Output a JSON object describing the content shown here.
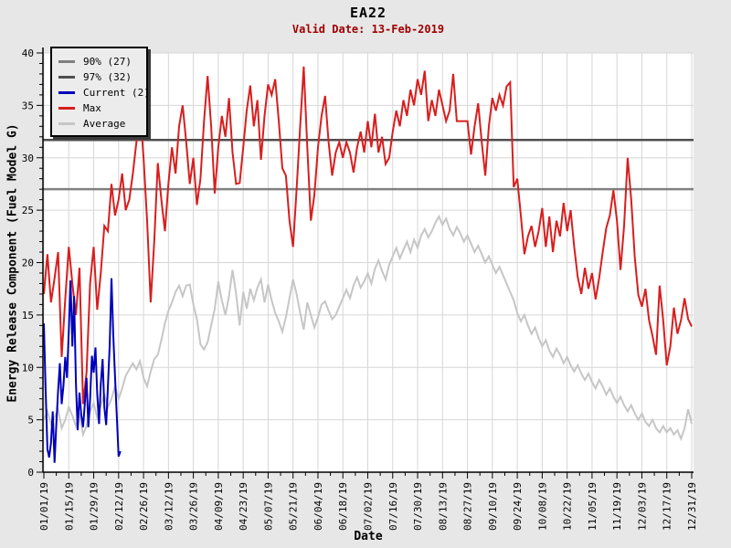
{
  "title": "EA22",
  "subtitle": "Valid Date: 13-Feb-2019",
  "axes": {
    "xlabel": "Date",
    "ylabel": "Energy Release Component (Fuel Model G)"
  },
  "legend": {
    "position": "top-left",
    "items": [
      {
        "label": "90% (27)",
        "color": "#808080"
      },
      {
        "label": "97% (32)",
        "color": "#4f4f4f"
      },
      {
        "label": "Current (2)",
        "color": "#0000bb"
      },
      {
        "label": "Max",
        "color": "#d81e1e"
      },
      {
        "label": "Average",
        "color": "#c6c6c6"
      }
    ]
  },
  "colors": {
    "page_bg": "#e7e7e7",
    "plot_bg": "#ffffff",
    "grid": "#d6d6d6",
    "axis": "#000000",
    "subtitle_text": "#a00000"
  },
  "chart_data": {
    "type": "line",
    "title": "EA22",
    "subtitle": "Valid Date: 13-Feb-2019",
    "xlabel": "Date",
    "ylabel": "Energy Release Component (Fuel Model G)",
    "ylim": [
      0,
      40
    ],
    "y_ticks": [
      0,
      5,
      10,
      15,
      20,
      25,
      30,
      35,
      40
    ],
    "y_minor_tick_step": 1,
    "grid": true,
    "legend_position": "top-left",
    "x_range_days": [
      0,
      364
    ],
    "x_tick_interval_days": 14,
    "x_minor_tick_interval_days": 7,
    "x_tick_labels": [
      "01/01/19",
      "01/15/19",
      "01/29/19",
      "02/12/19",
      "02/26/19",
      "03/12/19",
      "03/26/19",
      "04/09/19",
      "04/23/19",
      "05/07/19",
      "05/21/19",
      "06/04/19",
      "06/18/19",
      "07/02/19",
      "07/16/19",
      "07/30/19",
      "08/13/19",
      "08/27/19",
      "09/10/19",
      "09/24/19",
      "10/08/19",
      "10/22/19",
      "11/05/19",
      "11/19/19",
      "12/03/19",
      "12/17/19",
      "12/31/19"
    ],
    "reference_lines": [
      {
        "name": "90% (27)",
        "value": 27.0,
        "color": "#808080"
      },
      {
        "name": "97% (32)",
        "value": 31.7,
        "color": "#4f4f4f"
      }
    ],
    "series": [
      {
        "name": "Average",
        "color": "#c6c6c6",
        "start_day": 0,
        "day_step": 2,
        "values": [
          5.0,
          5.8,
          4.6,
          5.2,
          6.0,
          4.2,
          5.0,
          6.2,
          5.4,
          4.4,
          5.6,
          3.6,
          4.4,
          5.8,
          6.6,
          5.2,
          6.4,
          7.4,
          6.2,
          7.0,
          8.2,
          7.0,
          8.0,
          9.2,
          9.8,
          10.4,
          9.8,
          10.6,
          9.0,
          8.2,
          9.6,
          10.8,
          11.2,
          12.6,
          14.2,
          15.4,
          16.2,
          17.2,
          17.8,
          16.8,
          17.8,
          17.9,
          16.0,
          14.6,
          12.2,
          11.7,
          12.4,
          14.0,
          15.6,
          18.2,
          16.4,
          15.0,
          16.8,
          19.3,
          17.0,
          14.0,
          17.2,
          15.6,
          17.5,
          16.4,
          17.6,
          18.4,
          16.2,
          17.9,
          16.4,
          15.2,
          14.4,
          13.4,
          14.8,
          16.6,
          18.4,
          17.0,
          15.2,
          13.6,
          16.2,
          15.0,
          13.8,
          14.8,
          16.0,
          16.3,
          15.4,
          14.6,
          15.0,
          15.8,
          16.6,
          17.4,
          16.6,
          17.8,
          18.6,
          17.6,
          18.2,
          19.0,
          18.0,
          19.4,
          20.2,
          19.2,
          18.4,
          19.8,
          20.6,
          21.4,
          20.4,
          21.2,
          22.0,
          21.0,
          22.2,
          21.4,
          22.6,
          23.2,
          22.4,
          23.0,
          23.8,
          24.4,
          23.6,
          24.2,
          23.2,
          22.6,
          23.4,
          22.8,
          22.0,
          22.6,
          21.8,
          21.0,
          21.6,
          20.8,
          20.0,
          20.6,
          19.8,
          19.0,
          19.6,
          18.8,
          18.0,
          17.2,
          16.4,
          15.2,
          14.4,
          15.0,
          14.0,
          13.2,
          13.8,
          12.8,
          12.0,
          12.6,
          11.6,
          11.0,
          11.8,
          11.2,
          10.4,
          11.0,
          10.2,
          9.6,
          10.2,
          9.4,
          8.8,
          9.4,
          8.6,
          8.0,
          8.8,
          8.2,
          7.4,
          8.0,
          7.2,
          6.6,
          7.2,
          6.4,
          5.8,
          6.4,
          5.6,
          5.0,
          5.6,
          4.8,
          4.4,
          5.0,
          4.2,
          3.8,
          4.4,
          3.8,
          4.2,
          3.6,
          4.0,
          3.2,
          4.2,
          6.0,
          4.6
        ]
      },
      {
        "name": "Max",
        "color": "#d81e1e",
        "start_day": 0,
        "day_step": 2,
        "values": [
          17.0,
          20.8,
          16.2,
          18.5,
          21.0,
          11.0,
          16.5,
          21.5,
          18.0,
          15.0,
          19.5,
          6.5,
          9.5,
          18.0,
          21.5,
          15.5,
          19.0,
          23.5,
          23.0,
          27.5,
          24.5,
          26.0,
          28.5,
          25.0,
          26.0,
          28.5,
          31.5,
          34.8,
          30.0,
          24.0,
          16.2,
          22.0,
          29.5,
          26.0,
          23.0,
          27.5,
          31.0,
          28.5,
          33.0,
          35.0,
          31.5,
          27.5,
          30.0,
          25.5,
          28.0,
          33.5,
          37.8,
          33.0,
          26.6,
          31.0,
          34.0,
          32.0,
          35.7,
          30.5,
          27.5,
          27.6,
          31.0,
          34.5,
          36.9,
          33.0,
          35.5,
          29.8,
          34.0,
          37.0,
          36.0,
          37.5,
          33.5,
          29.0,
          28.3,
          24.0,
          21.5,
          27.0,
          33.0,
          38.7,
          31.0,
          24.0,
          26.5,
          31.0,
          34.0,
          35.9,
          31.5,
          28.3,
          30.5,
          31.5,
          30.0,
          31.5,
          30.5,
          28.6,
          31.0,
          32.5,
          30.5,
          33.5,
          31.0,
          34.2,
          30.5,
          32.0,
          29.4,
          30.0,
          32.5,
          34.5,
          33.0,
          35.5,
          34.0,
          36.5,
          35.0,
          37.5,
          36.0,
          38.3,
          33.5,
          35.5,
          34.0,
          36.5,
          35.0,
          33.5,
          34.5,
          38.0,
          33.5,
          33.5,
          33.5,
          33.5,
          30.3,
          33.0,
          35.2,
          31.5,
          28.3,
          33.0,
          35.7,
          34.5,
          36.0,
          35.0,
          36.8,
          37.2,
          27.2,
          28.0,
          24.5,
          20.8,
          22.5,
          23.5,
          21.5,
          23.0,
          25.2,
          21.5,
          24.4,
          21.0,
          24.0,
          22.5,
          25.7,
          23.0,
          25.0,
          21.5,
          18.6,
          17.0,
          19.5,
          17.5,
          19.0,
          16.5,
          18.5,
          21.0,
          23.3,
          24.5,
          26.9,
          24.0,
          19.3,
          23.5,
          30.0,
          26.0,
          20.5,
          16.9,
          15.8,
          17.5,
          14.5,
          13.0,
          11.2,
          17.8,
          14.5,
          10.2,
          12.0,
          15.7,
          13.2,
          14.5,
          16.6,
          14.6,
          13.9
        ]
      },
      {
        "name": "Current (2)",
        "color": "#0000bb",
        "start_day": 0,
        "day_step": 1,
        "values": [
          14.2,
          8.0,
          2.2,
          1.4,
          2.8,
          5.8,
          0.9,
          4.5,
          7.8,
          10.4,
          6.5,
          8.2,
          11.0,
          9.0,
          13.5,
          18.3,
          12.0,
          16.8,
          8.5,
          4.0,
          7.6,
          5.5,
          4.3,
          6.5,
          9.0,
          4.3,
          7.0,
          11.1,
          9.5,
          11.9,
          7.5,
          4.6,
          8.4,
          10.8,
          6.2,
          4.5,
          8.2,
          12.2,
          18.5,
          13.0,
          9.1,
          5.2,
          1.5,
          2.0
        ]
      }
    ]
  }
}
